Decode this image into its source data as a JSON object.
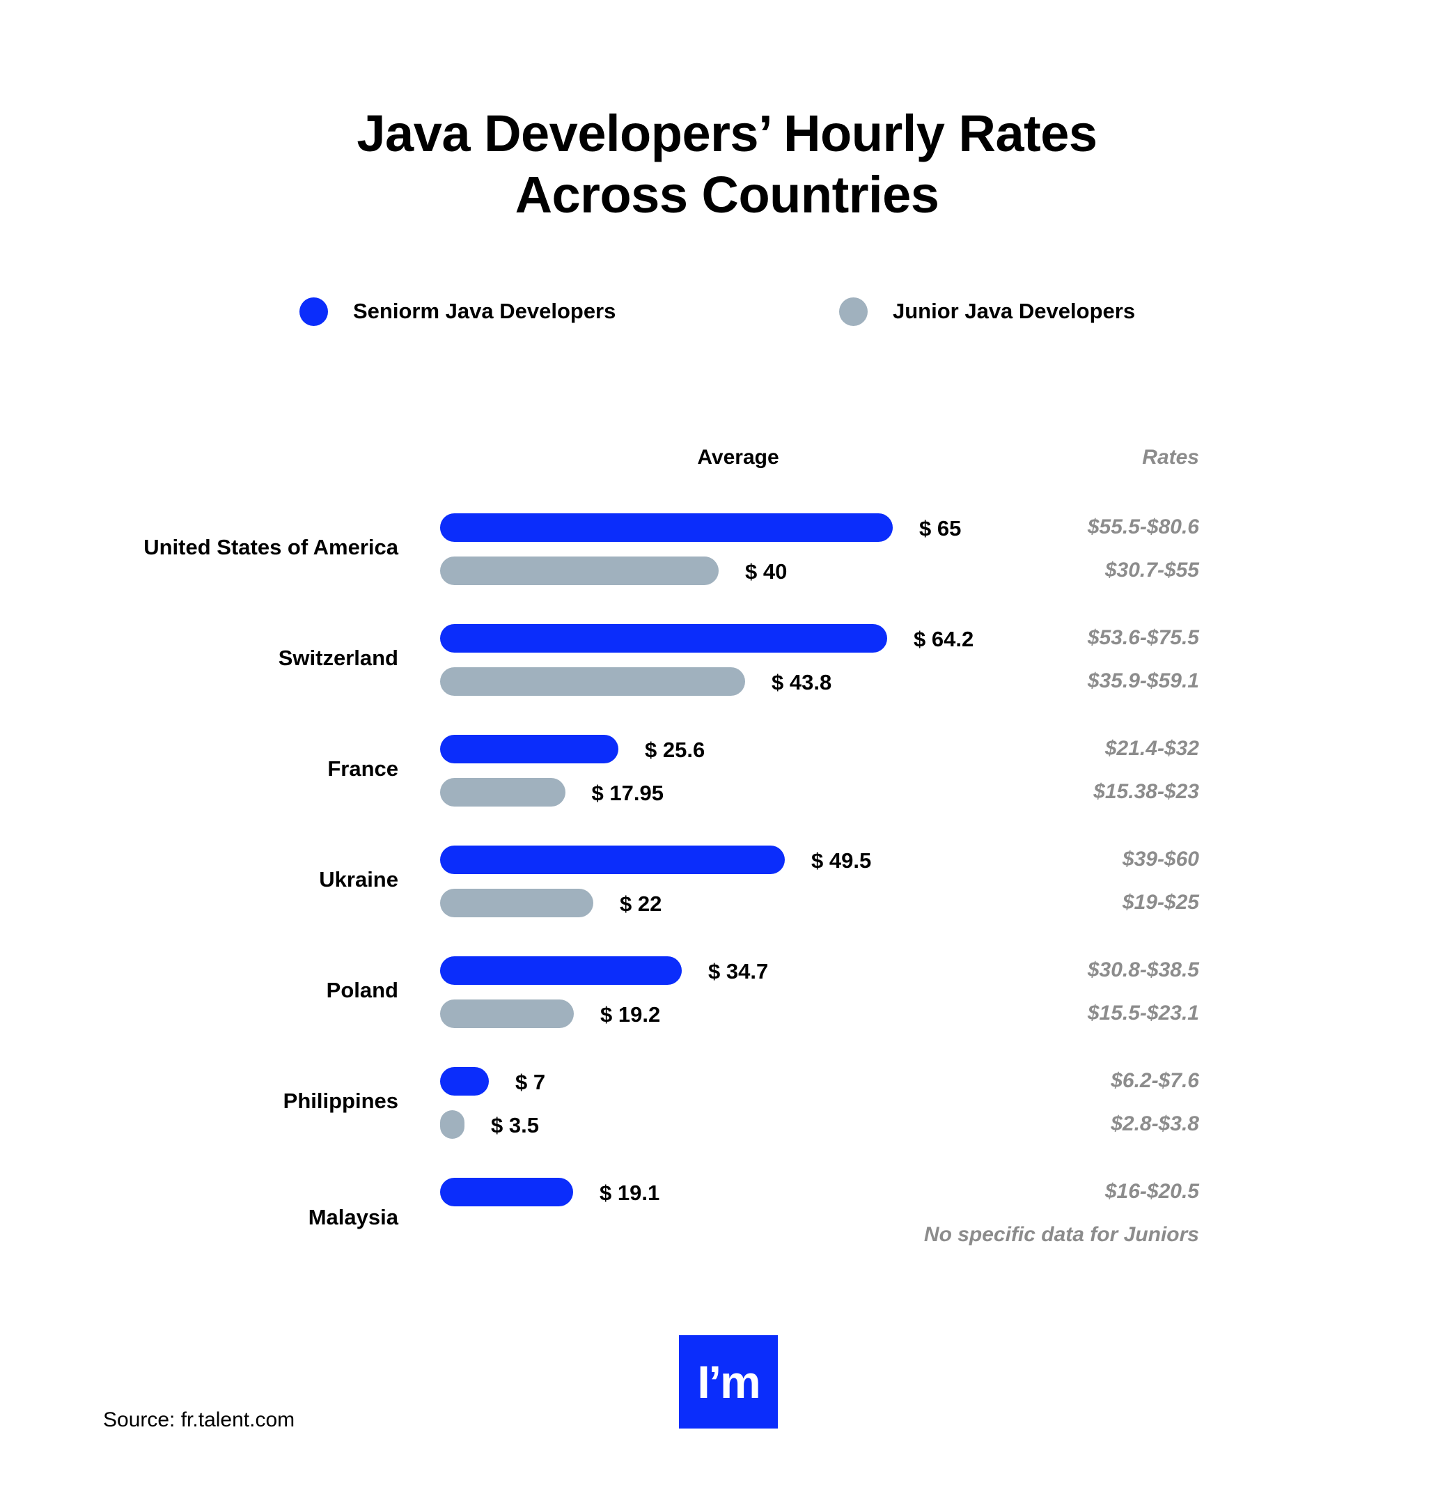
{
  "title_lines": [
    "Java Developers’ Hourly Rates",
    "Across Countries"
  ],
  "legend": [
    {
      "label": "Seniorm Java Developers",
      "color": "#0b2dfb"
    },
    {
      "label": "Junior Java Developers",
      "color": "#a0b1be"
    }
  ],
  "columns": {
    "average": "Average",
    "rates": "Rates"
  },
  "logo_text": "I’m",
  "source": "Source: fr.talent.com",
  "chart_data": {
    "type": "bar",
    "orientation": "horizontal",
    "title": "Java Developers’ Hourly Rates Across Countries",
    "categories": [
      "United States of America",
      "Switzerland",
      "France",
      "Ukraine",
      "Poland",
      "Philippines",
      "Malaysia"
    ],
    "series": [
      {
        "name": "Seniorm Java Developers",
        "color": "#0b2dfb",
        "values": [
          65,
          64.2,
          25.6,
          49.5,
          34.7,
          7,
          19.1
        ],
        "labels": [
          "$ 65",
          "$ 64.2",
          "$ 25.6",
          "$ 49.5",
          "$ 34.7",
          "$ 7",
          "$ 19.1"
        ],
        "ranges": [
          "$55.5-$80.6",
          "$53.6-$75.5",
          "$21.4-$32",
          "$39-$60",
          "$30.8-$38.5",
          "$6.2-$7.6",
          "$16-$20.5"
        ]
      },
      {
        "name": "Junior Java Developers",
        "color": "#a0b1be",
        "values": [
          40,
          43.8,
          17.95,
          22,
          19.2,
          3.5,
          null
        ],
        "labels": [
          "$ 40",
          "$ 43.8",
          "$ 17.95",
          "$ 22",
          "$ 19.2",
          "$ 3.5",
          ""
        ],
        "ranges": [
          "$30.7-$55",
          "$35.9-$59.1",
          "$15.38-$23",
          "$19-$25",
          "$15.5-$23.1",
          "$2.8-$3.8",
          "No specific data for Juniors"
        ]
      }
    ],
    "grid": false,
    "legend_position": "top"
  }
}
